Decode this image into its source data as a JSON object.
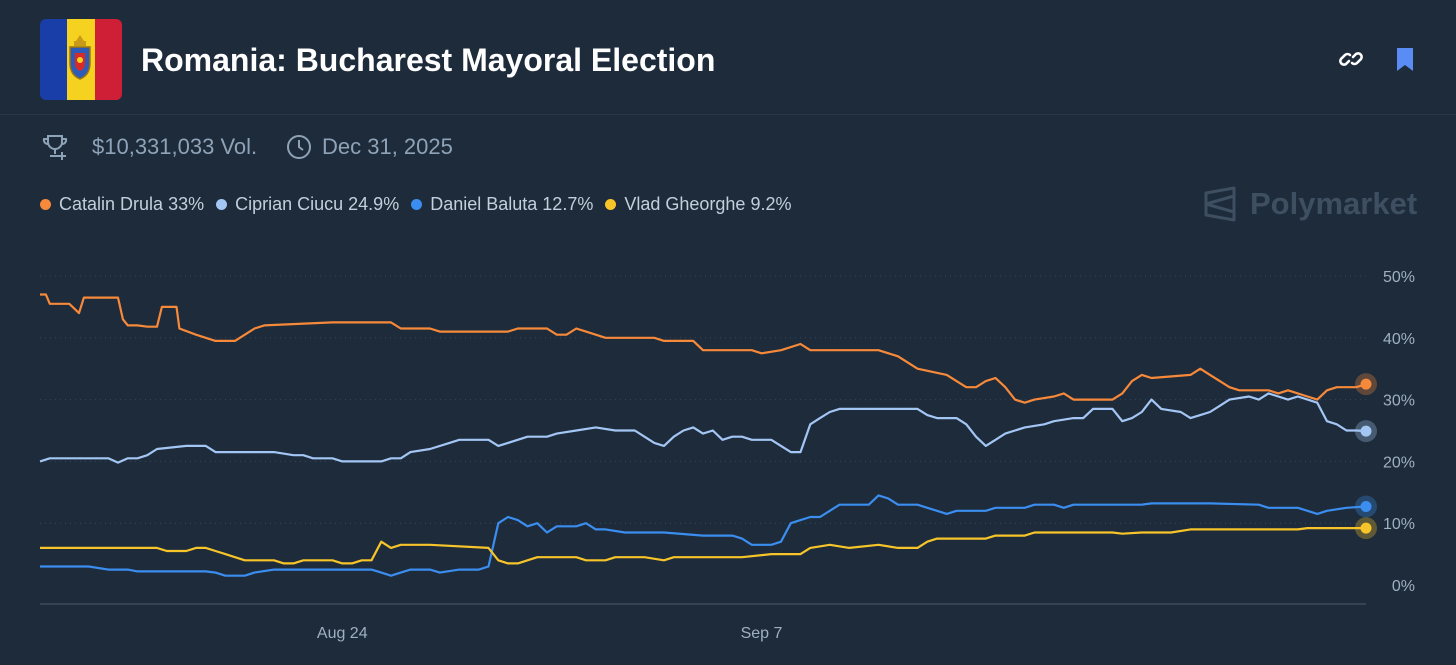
{
  "header": {
    "title": "Romania: Bucharest Mayoral Election",
    "link_icon": "link-icon",
    "bookmark_icon": "bookmark-icon",
    "flag_icon": "romania-flag-icon"
  },
  "meta": {
    "volume": "$10,331,033 Vol.",
    "end_date": "Dec 31, 2025",
    "volume_icon": "trophy-icon",
    "date_icon": "clock-icon"
  },
  "brand": {
    "name": "Polymarket",
    "icon": "polymarket-logo-icon"
  },
  "chart_data": {
    "type": "line",
    "y_ticks": [
      "0%",
      "10%",
      "20%",
      "30%",
      "40%",
      "50%"
    ],
    "x_ticks": [
      "Aug 24",
      "Sep 7"
    ],
    "ylim": [
      0,
      50
    ],
    "grid": true,
    "legend_position": "top-left",
    "series": [
      {
        "name": "Catalin Drula",
        "label": "33%",
        "color": "#f7893a",
        "points": [
          [
            0,
            47
          ],
          [
            0.6,
            47
          ],
          [
            1,
            45.5
          ],
          [
            3,
            45.5
          ],
          [
            4,
            44
          ],
          [
            4.5,
            46.5
          ],
          [
            8,
            46.5
          ],
          [
            8.5,
            43
          ],
          [
            9,
            42
          ],
          [
            10,
            42
          ],
          [
            11,
            41.8
          ],
          [
            12,
            41.8
          ],
          [
            12.5,
            45
          ],
          [
            14,
            45
          ],
          [
            14.3,
            41.5
          ],
          [
            16,
            40.5
          ],
          [
            18,
            39.5
          ],
          [
            20,
            39.5
          ],
          [
            21,
            40.5
          ],
          [
            22,
            41.5
          ],
          [
            23,
            42
          ],
          [
            30,
            42.5
          ],
          [
            36,
            42.5
          ],
          [
            37,
            41.5
          ],
          [
            40,
            41.5
          ],
          [
            41,
            41
          ],
          [
            48,
            41
          ],
          [
            49,
            41.5
          ],
          [
            52,
            41.5
          ],
          [
            53,
            40.5
          ],
          [
            54,
            40.5
          ],
          [
            55,
            41.5
          ],
          [
            56,
            41
          ],
          [
            58,
            40
          ],
          [
            63,
            40
          ],
          [
            64,
            39.5
          ],
          [
            67,
            39.5
          ],
          [
            68,
            38
          ],
          [
            73,
            38
          ],
          [
            74,
            37.5
          ],
          [
            76,
            38
          ],
          [
            78,
            39
          ],
          [
            79,
            38
          ],
          [
            86,
            38
          ],
          [
            88,
            37
          ],
          [
            90,
            35
          ],
          [
            93,
            34
          ],
          [
            94,
            33
          ],
          [
            95,
            32
          ],
          [
            96,
            32
          ],
          [
            97,
            33
          ],
          [
            98,
            33.5
          ],
          [
            99,
            32
          ],
          [
            100,
            30
          ],
          [
            101,
            29.5
          ],
          [
            102,
            30
          ],
          [
            104,
            30.5
          ],
          [
            105,
            31
          ],
          [
            106,
            30
          ],
          [
            110,
            30
          ],
          [
            111,
            31
          ],
          [
            112,
            33
          ],
          [
            113,
            34
          ],
          [
            114,
            33.5
          ],
          [
            118,
            34
          ],
          [
            119,
            35
          ],
          [
            120,
            34
          ],
          [
            121,
            33
          ],
          [
            122,
            32
          ],
          [
            123,
            31.5
          ],
          [
            126,
            31.5
          ],
          [
            127,
            31
          ],
          [
            128,
            31.5
          ],
          [
            130,
            30.5
          ],
          [
            131,
            30
          ],
          [
            132,
            31.5
          ],
          [
            133,
            32
          ],
          [
            135,
            32
          ],
          [
            136,
            32.5
          ]
        ]
      },
      {
        "name": "Ciprian Ciucu",
        "label": "24.9%",
        "color": "#a4c6f5",
        "points": [
          [
            0,
            20
          ],
          [
            1,
            20.5
          ],
          [
            7,
            20.5
          ],
          [
            8,
            19.8
          ],
          [
            9,
            20.5
          ],
          [
            10,
            20.5
          ],
          [
            11,
            21
          ],
          [
            12,
            22
          ],
          [
            15,
            22.5
          ],
          [
            17,
            22.5
          ],
          [
            18,
            21.5
          ],
          [
            24,
            21.5
          ],
          [
            26,
            21
          ],
          [
            27,
            21
          ],
          [
            28,
            20.5
          ],
          [
            30,
            20.5
          ],
          [
            31,
            20
          ],
          [
            35,
            20
          ],
          [
            36,
            20.5
          ],
          [
            37,
            20.5
          ],
          [
            38,
            21.5
          ],
          [
            40,
            22
          ],
          [
            42,
            23
          ],
          [
            43,
            23.5
          ],
          [
            46,
            23.5
          ],
          [
            47,
            22.5
          ],
          [
            48,
            23
          ],
          [
            50,
            24
          ],
          [
            52,
            24
          ],
          [
            53,
            24.5
          ],
          [
            55,
            25
          ],
          [
            57,
            25.5
          ],
          [
            59,
            25
          ],
          [
            61,
            25
          ],
          [
            62,
            24
          ],
          [
            63,
            23
          ],
          [
            64,
            22.5
          ],
          [
            65,
            24
          ],
          [
            66,
            25
          ],
          [
            67,
            25.5
          ],
          [
            68,
            24.5
          ],
          [
            69,
            25
          ],
          [
            70,
            23.5
          ],
          [
            71,
            24
          ],
          [
            72,
            24
          ],
          [
            73,
            23.5
          ],
          [
            75,
            23.5
          ],
          [
            76,
            22.5
          ],
          [
            77,
            21.5
          ],
          [
            78,
            21.5
          ],
          [
            79,
            26
          ],
          [
            80,
            27
          ],
          [
            81,
            28
          ],
          [
            82,
            28.5
          ],
          [
            90,
            28.5
          ],
          [
            91,
            27.5
          ],
          [
            92,
            27
          ],
          [
            94,
            27
          ],
          [
            95,
            26
          ],
          [
            96,
            24
          ],
          [
            97,
            22.5
          ],
          [
            98,
            23.5
          ],
          [
            99,
            24.5
          ],
          [
            100,
            25
          ],
          [
            101,
            25.5
          ],
          [
            103,
            26
          ],
          [
            104,
            26.5
          ],
          [
            106,
            27
          ],
          [
            107,
            27
          ],
          [
            108,
            28.5
          ],
          [
            110,
            28.5
          ],
          [
            111,
            26.5
          ],
          [
            112,
            27
          ],
          [
            113,
            28
          ],
          [
            114,
            30
          ],
          [
            115,
            28.5
          ],
          [
            117,
            28
          ],
          [
            118,
            27
          ],
          [
            119,
            27.5
          ],
          [
            120,
            28
          ],
          [
            121,
            29
          ],
          [
            122,
            30
          ],
          [
            124,
            30.5
          ],
          [
            125,
            30
          ],
          [
            126,
            31
          ],
          [
            127,
            30.5
          ],
          [
            128,
            30
          ],
          [
            129,
            30.5
          ],
          [
            130,
            30
          ],
          [
            131,
            29.5
          ],
          [
            132,
            26.5
          ],
          [
            133,
            26
          ],
          [
            134,
            25
          ],
          [
            135,
            25
          ],
          [
            136,
            24.9
          ]
        ]
      },
      {
        "name": "Daniel Baluta",
        "label": "12.7%",
        "color": "#3b8ef0",
        "points": [
          [
            0,
            3
          ],
          [
            5,
            3
          ],
          [
            7,
            2.5
          ],
          [
            9,
            2.5
          ],
          [
            10,
            2.2
          ],
          [
            17,
            2.2
          ],
          [
            18,
            2
          ],
          [
            19,
            1.5
          ],
          [
            21,
            1.5
          ],
          [
            22,
            2
          ],
          [
            24,
            2.5
          ],
          [
            34,
            2.5
          ],
          [
            35,
            2
          ],
          [
            36,
            1.5
          ],
          [
            37,
            2
          ],
          [
            38,
            2.5
          ],
          [
            40,
            2.5
          ],
          [
            41,
            2
          ],
          [
            43,
            2.5
          ],
          [
            45,
            2.5
          ],
          [
            46,
            3
          ],
          [
            47,
            10
          ],
          [
            48,
            11
          ],
          [
            49,
            10.5
          ],
          [
            50,
            9.5
          ],
          [
            51,
            10
          ],
          [
            52,
            8.5
          ],
          [
            53,
            9.5
          ],
          [
            55,
            9.5
          ],
          [
            56,
            10
          ],
          [
            57,
            9
          ],
          [
            58,
            9
          ],
          [
            60,
            8.5
          ],
          [
            64,
            8.5
          ],
          [
            68,
            8
          ],
          [
            71,
            8
          ],
          [
            72,
            7.5
          ],
          [
            73,
            6.5
          ],
          [
            75,
            6.5
          ],
          [
            76,
            7
          ],
          [
            77,
            10
          ],
          [
            78,
            10.5
          ],
          [
            79,
            11
          ],
          [
            80,
            11
          ],
          [
            81,
            12
          ],
          [
            82,
            13
          ],
          [
            83,
            13
          ],
          [
            85,
            13
          ],
          [
            86,
            14.5
          ],
          [
            87,
            14
          ],
          [
            88,
            13
          ],
          [
            90,
            13
          ],
          [
            91,
            12.5
          ],
          [
            92,
            12
          ],
          [
            93,
            11.5
          ],
          [
            94,
            12
          ],
          [
            97,
            12
          ],
          [
            98,
            12.5
          ],
          [
            101,
            12.5
          ],
          [
            102,
            13
          ],
          [
            104,
            13
          ],
          [
            105,
            12.5
          ],
          [
            106,
            13
          ],
          [
            113,
            13
          ],
          [
            114,
            13.2
          ],
          [
            120,
            13.2
          ],
          [
            125,
            13
          ],
          [
            126,
            12.5
          ],
          [
            129,
            12.5
          ],
          [
            130,
            12
          ],
          [
            131,
            11.5
          ],
          [
            132,
            12
          ],
          [
            134,
            12.5
          ],
          [
            136,
            12.7
          ]
        ]
      },
      {
        "name": "Vlad Gheorghe",
        "label": "9.2%",
        "color": "#f7c52a",
        "points": [
          [
            0,
            6
          ],
          [
            12,
            6
          ],
          [
            13,
            5.5
          ],
          [
            15,
            5.5
          ],
          [
            16,
            6
          ],
          [
            17,
            6
          ],
          [
            18,
            5.5
          ],
          [
            19,
            5
          ],
          [
            20,
            4.5
          ],
          [
            21,
            4
          ],
          [
            24,
            4
          ],
          [
            25,
            3.5
          ],
          [
            26,
            3.5
          ],
          [
            27,
            4
          ],
          [
            30,
            4
          ],
          [
            31,
            3.5
          ],
          [
            32,
            3.5
          ],
          [
            33,
            4
          ],
          [
            34,
            4
          ],
          [
            35,
            7
          ],
          [
            36,
            6
          ],
          [
            37,
            6.5
          ],
          [
            39,
            6.5
          ],
          [
            40,
            6.5
          ],
          [
            46,
            6
          ],
          [
            47,
            4
          ],
          [
            48,
            3.5
          ],
          [
            49,
            3.5
          ],
          [
            50,
            4
          ],
          [
            51,
            4.5
          ],
          [
            52,
            4.5
          ],
          [
            55,
            4.5
          ],
          [
            56,
            4
          ],
          [
            58,
            4
          ],
          [
            59,
            4.5
          ],
          [
            62,
            4.5
          ],
          [
            64,
            4
          ],
          [
            65,
            4.5
          ],
          [
            70,
            4.5
          ],
          [
            72,
            4.5
          ],
          [
            75,
            5
          ],
          [
            78,
            5
          ],
          [
            79,
            6
          ],
          [
            81,
            6.5
          ],
          [
            83,
            6
          ],
          [
            86,
            6.5
          ],
          [
            88,
            6
          ],
          [
            90,
            6
          ],
          [
            91,
            7
          ],
          [
            92,
            7.5
          ],
          [
            94,
            7.5
          ],
          [
            95,
            7.5
          ],
          [
            97,
            7.5
          ],
          [
            98,
            8
          ],
          [
            101,
            8
          ],
          [
            102,
            8.5
          ],
          [
            104,
            8.5
          ],
          [
            106,
            8.5
          ],
          [
            107,
            8.5
          ],
          [
            110,
            8.5
          ],
          [
            111,
            8.3
          ],
          [
            113,
            8.5
          ],
          [
            116,
            8.5
          ],
          [
            118,
            9
          ],
          [
            125,
            9
          ],
          [
            126,
            9
          ],
          [
            129,
            9
          ],
          [
            130,
            9.2
          ],
          [
            132,
            9.2
          ],
          [
            134,
            9.2
          ],
          [
            136,
            9.2
          ]
        ]
      }
    ]
  }
}
